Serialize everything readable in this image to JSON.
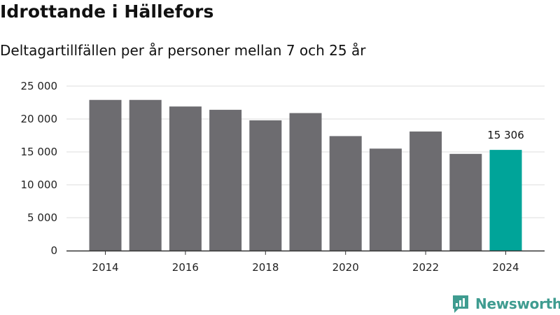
{
  "title": "Idrottande i Hällefors",
  "subtitle": "Deltagartillfällen per år personer mellan 7 och 25 år",
  "brand": {
    "name": "Newsworthy",
    "icon": "newsworthy-logo-icon"
  },
  "colors": {
    "bar": "#6d6c70",
    "highlight": "#00a499",
    "grid": "#dddddd",
    "axis": "#333333",
    "brand": "#3f9c90"
  },
  "chart_data": {
    "type": "bar",
    "title": "Idrottande i Hällefors",
    "subtitle": "Deltagartillfällen per år personer mellan 7 och 25 år",
    "xlabel": "",
    "ylabel": "",
    "categories": [
      "2014",
      "2015",
      "2016",
      "2017",
      "2018",
      "2019",
      "2020",
      "2021",
      "2022",
      "2023",
      "2024"
    ],
    "values": [
      22900,
      22900,
      21900,
      21400,
      19800,
      20900,
      17400,
      15500,
      18100,
      14700,
      15306
    ],
    "highlight_index": 10,
    "data_labels": [
      {
        "index": 10,
        "text": "15 306"
      }
    ],
    "x_tick_labels": [
      "2014",
      "2016",
      "2018",
      "2020",
      "2022",
      "2024"
    ],
    "y_ticks": [
      0,
      5000,
      10000,
      15000,
      20000,
      25000
    ],
    "y_tick_labels": [
      "0",
      "5 000",
      "10 000",
      "15 000",
      "20 000",
      "25 000"
    ],
    "ylim": [
      0,
      25000
    ],
    "grid": true
  }
}
